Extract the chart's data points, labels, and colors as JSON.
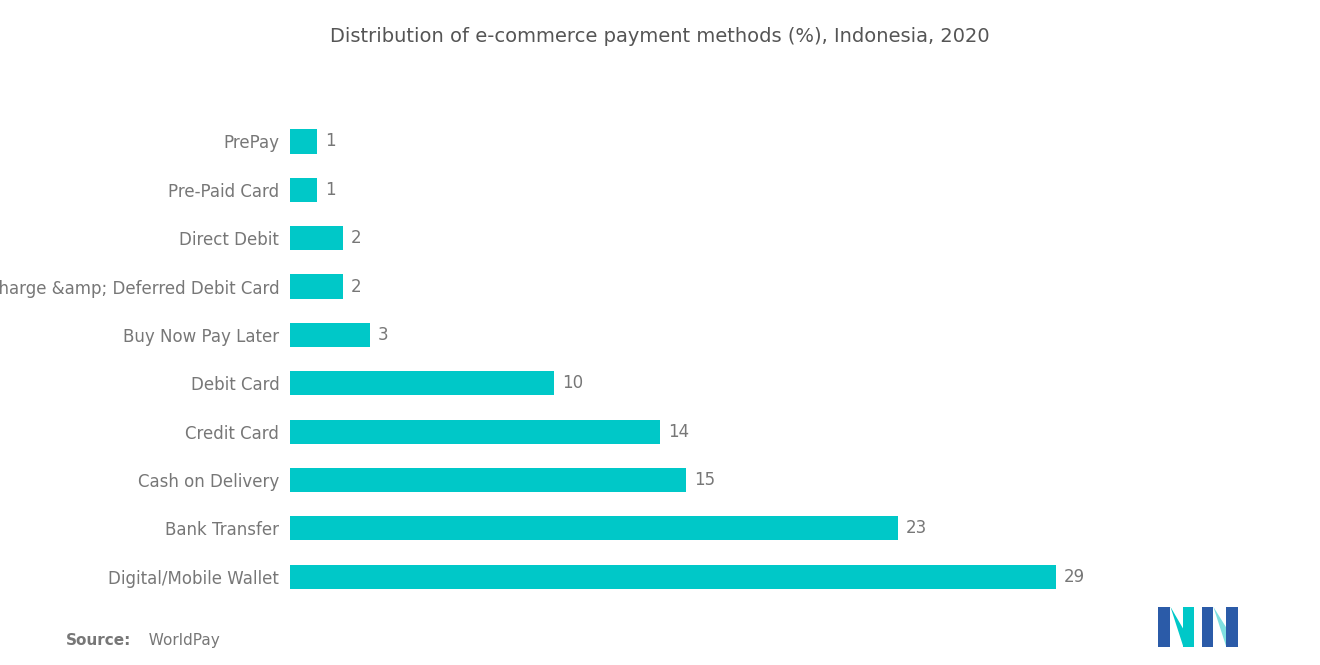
{
  "title": "Distribution of e-commerce payment methods (%), Indonesia, 2020",
  "categories": [
    "PrePay",
    "Pre-Paid Card",
    "Direct Debit",
    "Charge &amp; Deferred Debit Card",
    "Buy Now Pay Later",
    "Debit Card",
    "Credit Card",
    "Cash on Delivery",
    "Bank Transfer",
    "Digital/Mobile Wallet"
  ],
  "values": [
    1,
    1,
    2,
    2,
    3,
    10,
    14,
    15,
    23,
    29
  ],
  "bar_color": "#00C8C8",
  "background_color": "#ffffff",
  "label_color": "#777777",
  "value_color": "#777777",
  "title_color": "#555555",
  "source_bold": "Source:",
  "source_normal": "  WorldPay",
  "title_fontsize": 14,
  "label_fontsize": 12,
  "value_fontsize": 12,
  "source_fontsize": 11,
  "bar_height": 0.5,
  "xlim": 34,
  "logo_dark": "#2B5BA8",
  "logo_teal": "#00C8C8",
  "logo_light_teal": "#7FE0E0"
}
